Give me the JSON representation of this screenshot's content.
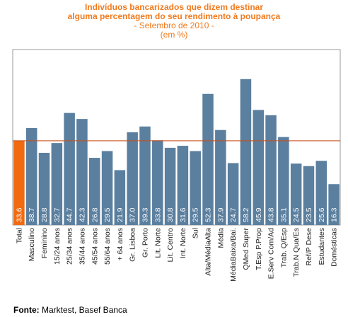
{
  "chart_data": {
    "type": "bar",
    "title_line1": "Indivíduos bancarizados que dizem destinar",
    "title_line2": "alguma percentagem do seu rendimento à poupança",
    "subtitle": "- Setembro de 2010 -",
    "unit": "(em %)",
    "categories": [
      "Total",
      "Masculino",
      "Feminino",
      "15/24 anos",
      "25/34 anos",
      "35/44 anos",
      "45/54 anos",
      "55/64 anos",
      "+ 64 anos",
      "Gr. Lisboa",
      "Gr. Porto",
      "Lit. Norte",
      "Lit. Centro",
      "Int. Norte",
      "Sul",
      "Alta/MédiaAlta",
      "Média",
      "MédiaBaixa/Bai.",
      "QMed Super",
      "T.Esp P.Prop",
      "E.Serv Com/Ad",
      "Trab. Q/Esp",
      "Trab.N Qua/Es",
      "Ref/P Dese",
      "Estudantes",
      "Domésticas"
    ],
    "values": [
      33.6,
      38.7,
      28.8,
      32.7,
      44.7,
      42.3,
      26.8,
      29.5,
      21.9,
      37.0,
      39.3,
      33.8,
      30.8,
      31.6,
      29.5,
      52.3,
      37.9,
      24.7,
      58.2,
      45.9,
      43.8,
      35.1,
      24.5,
      23.5,
      25.6,
      16.3
    ],
    "value_labels": [
      "33.6",
      "38.7",
      "28.8",
      "32.7",
      "44.7",
      "42.3",
      "26.8",
      "29.5",
      "21.9",
      "37.0",
      "39.3",
      "33.8",
      "30.8",
      "31.6",
      "29.5",
      "52.3",
      "37.9",
      "24.7",
      "58.2",
      "45.9",
      "43.8",
      "35.1",
      "24.5",
      "23.5",
      "25.6",
      "16.3"
    ],
    "ylim": [
      0,
      70
    ],
    "reference_line": 33.6,
    "highlight_index": 0,
    "colors": {
      "bar": "#5b7f9f",
      "highlight": "#f26a10",
      "reference_line": "#c8501a",
      "plot_border": "#9a9a9a",
      "title": "#f07a1e"
    },
    "grid": false,
    "legend": "none"
  },
  "footer": {
    "source_label": "Fonte:",
    "source_text": " Marktest, Basef Banca"
  }
}
